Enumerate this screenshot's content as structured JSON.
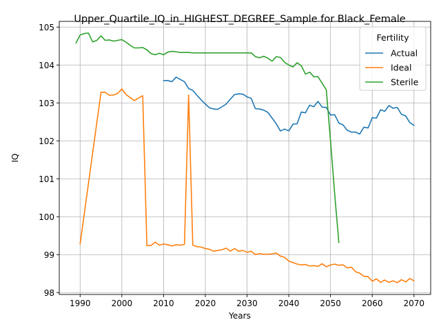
{
  "chart_data": {
    "type": "line",
    "title": "Upper_Quartile_IQ_in_HIGHEST_DEGREE_Sample for Black_Female",
    "xlabel": "Years",
    "ylabel": "IQ",
    "xlim": [
      1985,
      2074
    ],
    "ylim": [
      97.95,
      105.15
    ],
    "x_ticks": [
      1990,
      2000,
      2010,
      2020,
      2030,
      2040,
      2050,
      2060,
      2070
    ],
    "y_ticks": [
      98,
      99,
      100,
      101,
      102,
      103,
      104,
      105
    ],
    "grid": true,
    "legend": {
      "title": "Fertility",
      "position": "top-right"
    },
    "series": [
      {
        "name": "Actual",
        "color": "#1f77b4",
        "x": [
          2010,
          2011,
          2012,
          2013,
          2014,
          2015,
          2016,
          2017,
          2018,
          2019,
          2020,
          2021,
          2022,
          2023,
          2024,
          2025,
          2026,
          2027,
          2028,
          2029,
          2030,
          2031,
          2032,
          2033,
          2034,
          2035,
          2036,
          2037,
          2038,
          2039,
          2040,
          2041,
          2042,
          2043,
          2044,
          2045,
          2046,
          2047,
          2048,
          2049,
          2050,
          2051,
          2052,
          2053,
          2054,
          2055,
          2056,
          2057,
          2058,
          2059,
          2060,
          2061,
          2062,
          2063,
          2064,
          2065,
          2066,
          2067,
          2068,
          2069,
          2070
        ],
        "y": [
          103.59,
          103.59,
          103.56,
          103.68,
          103.62,
          103.56,
          103.38,
          103.33,
          103.2,
          103.08,
          102.97,
          102.87,
          102.84,
          102.83,
          102.9,
          102.97,
          103.1,
          103.22,
          103.24,
          103.23,
          103.16,
          103.12,
          102.85,
          102.84,
          102.81,
          102.75,
          102.6,
          102.45,
          102.26,
          102.31,
          102.26,
          102.44,
          102.45,
          102.76,
          102.74,
          102.94,
          102.9,
          103.04,
          102.89,
          102.88,
          102.68,
          102.69,
          102.47,
          102.42,
          102.28,
          102.23,
          102.23,
          102.18,
          102.36,
          102.34,
          102.61,
          102.6,
          102.82,
          102.78,
          102.93,
          102.86,
          102.88,
          102.7,
          102.66,
          102.48,
          102.41
        ]
      },
      {
        "name": "Ideal",
        "color": "#ff7f0e",
        "x": [
          1990,
          1995,
          1996,
          1997,
          1998,
          1999,
          2000,
          2001,
          2002,
          2003,
          2004,
          2005,
          2006,
          2007,
          2008,
          2009,
          2010,
          2011,
          2012,
          2013,
          2014,
          2015,
          2016,
          2017,
          2018,
          2019,
          2020,
          2021,
          2022,
          2023,
          2024,
          2025,
          2026,
          2027,
          2028,
          2029,
          2030,
          2031,
          2032,
          2033,
          2034,
          2035,
          2036,
          2037,
          2038,
          2039,
          2040,
          2041,
          2042,
          2043,
          2044,
          2045,
          2046,
          2047,
          2048,
          2049,
          2050,
          2051,
          2052,
          2053,
          2054,
          2055,
          2056,
          2057,
          2058,
          2059,
          2060,
          2061,
          2062,
          2063,
          2064,
          2065,
          2066,
          2067,
          2068,
          2069,
          2070
        ],
        "y": [
          99.28,
          103.28,
          103.28,
          103.2,
          103.21,
          103.25,
          103.37,
          103.22,
          103.14,
          103.06,
          103.13,
          103.19,
          99.24,
          99.24,
          99.33,
          99.25,
          99.28,
          99.26,
          99.23,
          99.26,
          99.25,
          99.27,
          103.21,
          99.25,
          99.21,
          99.2,
          99.16,
          99.14,
          99.09,
          99.11,
          99.13,
          99.17,
          99.09,
          99.16,
          99.09,
          99.11,
          99.06,
          99.09,
          99.0,
          99.03,
          99.01,
          99.01,
          99.02,
          99.04,
          98.96,
          98.93,
          98.83,
          98.79,
          98.75,
          98.73,
          98.74,
          98.7,
          98.71,
          98.69,
          98.76,
          98.68,
          98.73,
          98.75,
          98.72,
          98.73,
          98.65,
          98.67,
          98.55,
          98.51,
          98.43,
          98.42,
          98.3,
          98.36,
          98.27,
          98.33,
          98.27,
          98.31,
          98.26,
          98.34,
          98.28,
          98.37,
          98.31
        ]
      },
      {
        "name": "Sterile",
        "color": "#2ca02c",
        "x": [
          1989,
          1990,
          1991,
          1992,
          1993,
          1994,
          1995,
          1996,
          1997,
          1998,
          1999,
          2000,
          2001,
          2002,
          2003,
          2004,
          2005,
          2006,
          2007,
          2008,
          2009,
          2010,
          2011,
          2012,
          2013,
          2014,
          2015,
          2016,
          2017,
          2018,
          2019,
          2020,
          2025,
          2030,
          2031,
          2032,
          2033,
          2034,
          2035,
          2036,
          2037,
          2038,
          2039,
          2040,
          2041,
          2042,
          2043,
          2044,
          2045,
          2046,
          2047,
          2048,
          2049,
          2050,
          2051,
          2052
        ],
        "y": [
          104.58,
          104.79,
          104.83,
          104.84,
          104.61,
          104.65,
          104.77,
          104.65,
          104.66,
          104.63,
          104.65,
          104.67,
          104.6,
          104.52,
          104.45,
          104.45,
          104.46,
          104.4,
          104.3,
          104.27,
          104.31,
          104.27,
          104.34,
          104.36,
          104.35,
          104.33,
          104.33,
          104.33,
          104.32,
          104.32,
          104.32,
          104.32,
          104.32,
          104.32,
          104.32,
          104.22,
          104.19,
          104.23,
          104.18,
          104.1,
          104.22,
          104.2,
          104.07,
          104.0,
          103.95,
          104.06,
          103.98,
          103.76,
          103.81,
          103.69,
          103.69,
          103.52,
          103.34,
          102.0,
          100.6,
          99.32
        ]
      }
    ]
  }
}
